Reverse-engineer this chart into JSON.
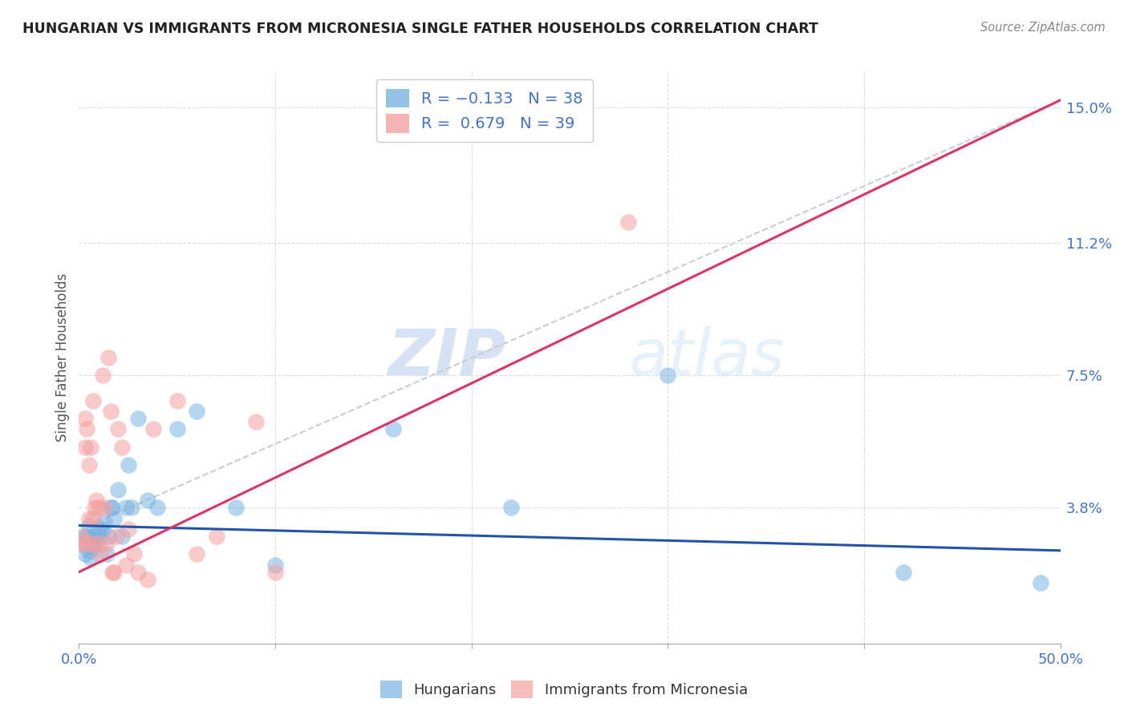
{
  "title": "HUNGARIAN VS IMMIGRANTS FROM MICRONESIA SINGLE FATHER HOUSEHOLDS CORRELATION CHART",
  "source": "Source: ZipAtlas.com",
  "ylabel": "Single Father Households",
  "xlim": [
    0.0,
    0.5
  ],
  "ylim": [
    0.0,
    0.16
  ],
  "xticks": [
    0.0,
    0.1,
    0.2,
    0.3,
    0.4,
    0.5
  ],
  "xticklabels": [
    "0.0%",
    "",
    "",
    "",
    "",
    "50.0%"
  ],
  "yticks": [
    0.0,
    0.038,
    0.075,
    0.112,
    0.15
  ],
  "yticklabels": [
    "",
    "3.8%",
    "7.5%",
    "11.2%",
    "15.0%"
  ],
  "blue_color": "#7ab3e0",
  "pink_color": "#f4a0a0",
  "blue_line_color": "#2255aa",
  "pink_line_color": "#dd3366",
  "dash_color": "#cccccc",
  "legend_label1": "Hungarians",
  "legend_label2": "Immigrants from Micronesia",
  "watermark_zip": "ZIP",
  "watermark_atlas": "atlas",
  "blue_scatter_x": [
    0.002,
    0.003,
    0.003,
    0.004,
    0.005,
    0.005,
    0.006,
    0.006,
    0.007,
    0.008,
    0.008,
    0.009,
    0.01,
    0.011,
    0.012,
    0.013,
    0.014,
    0.015,
    0.016,
    0.017,
    0.018,
    0.02,
    0.022,
    0.024,
    0.025,
    0.027,
    0.03,
    0.035,
    0.04,
    0.05,
    0.06,
    0.08,
    0.1,
    0.16,
    0.22,
    0.3,
    0.42,
    0.49
  ],
  "blue_scatter_y": [
    0.028,
    0.03,
    0.025,
    0.03,
    0.033,
    0.026,
    0.024,
    0.028,
    0.03,
    0.028,
    0.027,
    0.03,
    0.032,
    0.03,
    0.032,
    0.034,
    0.025,
    0.03,
    0.038,
    0.038,
    0.035,
    0.043,
    0.03,
    0.038,
    0.05,
    0.038,
    0.063,
    0.04,
    0.038,
    0.06,
    0.065,
    0.038,
    0.022,
    0.06,
    0.038,
    0.075,
    0.02,
    0.017
  ],
  "pink_scatter_x": [
    0.001,
    0.002,
    0.003,
    0.003,
    0.004,
    0.004,
    0.005,
    0.005,
    0.006,
    0.006,
    0.007,
    0.007,
    0.008,
    0.009,
    0.01,
    0.01,
    0.011,
    0.012,
    0.013,
    0.014,
    0.015,
    0.016,
    0.017,
    0.018,
    0.019,
    0.02,
    0.022,
    0.024,
    0.025,
    0.028,
    0.03,
    0.035,
    0.038,
    0.05,
    0.06,
    0.07,
    0.09,
    0.1,
    0.28
  ],
  "pink_scatter_y": [
    0.03,
    0.028,
    0.063,
    0.055,
    0.06,
    0.028,
    0.035,
    0.05,
    0.055,
    0.028,
    0.035,
    0.068,
    0.038,
    0.04,
    0.028,
    0.038,
    0.025,
    0.075,
    0.038,
    0.028,
    0.08,
    0.065,
    0.02,
    0.02,
    0.03,
    0.06,
    0.055,
    0.022,
    0.032,
    0.025,
    0.02,
    0.018,
    0.06,
    0.068,
    0.025,
    0.03,
    0.062,
    0.02,
    0.118
  ],
  "blue_line_x0": 0.0,
  "blue_line_x1": 0.5,
  "blue_line_y0": 0.033,
  "blue_line_y1": 0.026,
  "pink_line_x0": 0.0,
  "pink_line_x1": 0.5,
  "pink_line_y0": 0.02,
  "pink_line_y1": 0.152,
  "dash_line_x0": 0.005,
  "dash_line_x1": 0.5,
  "dash_line_y0": 0.033,
  "dash_line_y1": 0.152
}
